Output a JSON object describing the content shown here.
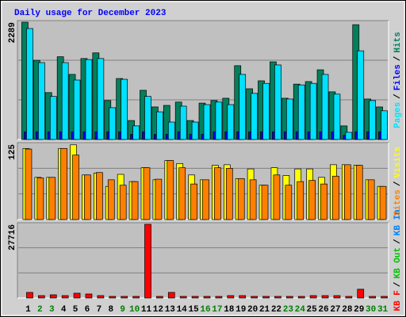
{
  "chart_data": [
    {
      "type": "bar",
      "title": "Daily usage for December 2023",
      "ylim": [
        0,
        2289
      ],
      "yticks": [
        2289
      ],
      "grid": true,
      "legend_separator": "/",
      "series": [
        {
          "name": "Hits",
          "color": "#00805c",
          "values": [
            2289,
            1545,
            915,
            1615,
            1270,
            1580,
            1690,
            760,
            1190,
            370,
            960,
            635,
            665,
            730,
            370,
            710,
            760,
            805,
            1440,
            990,
            1145,
            1515,
            805,
            1080,
            1130,
            1360,
            930,
            265,
            2240,
            790,
            635
          ]
        },
        {
          "name": "Files",
          "color": "#0000ff",
          "values": [
            150,
            150,
            150,
            150,
            150,
            150,
            150,
            150,
            150,
            100,
            150,
            100,
            100,
            150,
            100,
            100,
            150,
            150,
            150,
            150,
            150,
            150,
            150,
            150,
            150,
            150,
            150,
            80,
            150,
            150,
            150
          ]
        },
        {
          "name": "Pages",
          "color": "#00e0ff",
          "values": [
            2165,
            1500,
            840,
            1500,
            1160,
            1560,
            1580,
            620,
            1175,
            265,
            840,
            540,
            340,
            650,
            340,
            680,
            730,
            680,
            1270,
            900,
            1095,
            1455,
            790,
            1065,
            1095,
            1270,
            885,
            140,
            1730,
            760,
            560
          ]
        }
      ]
    },
    {
      "type": "bar",
      "ylim": [
        0,
        125
      ],
      "yticks": [
        125
      ],
      "grid": true,
      "legend_separator": "/",
      "series": [
        {
          "name": "Visits",
          "color": "#ffff00",
          "values": [
            118,
            70,
            70,
            118,
            124,
            74,
            77,
            55,
            75,
            63,
            86,
            66,
            98,
            93,
            74,
            66,
            90,
            91,
            68,
            84,
            57,
            86,
            73,
            84,
            84,
            70,
            91,
            91,
            90,
            66,
            55
          ]
        },
        {
          "name": "Sites",
          "color": "#ff8000",
          "values": [
            117,
            69,
            70,
            118,
            107,
            74,
            78,
            66,
            57,
            63,
            86,
            67,
            98,
            86,
            59,
            66,
            86,
            85,
            68,
            66,
            57,
            74,
            57,
            63,
            65,
            59,
            72,
            91,
            90,
            66,
            55
          ]
        }
      ]
    },
    {
      "type": "bar",
      "ylim": [
        0,
        27716
      ],
      "yticks": [
        27716
      ],
      "grid": true,
      "legend_separator": "/",
      "categories": [
        "1",
        "2",
        "3",
        "4",
        "5",
        "6",
        "7",
        "8",
        "9",
        "10",
        "11",
        "12",
        "13",
        "14",
        "15",
        "16",
        "17",
        "18",
        "19",
        "20",
        "21",
        "22",
        "23",
        "24",
        "25",
        "26",
        "27",
        "28",
        "29",
        "30",
        "31"
      ],
      "category_colors": [
        "#000000",
        "#008000",
        "#008000",
        "#000000",
        "#000000",
        "#000000",
        "#000000",
        "#000000",
        "#008000",
        "#008000",
        "#000000",
        "#000000",
        "#000000",
        "#000000",
        "#000000",
        "#008000",
        "#008000",
        "#000000",
        "#000000",
        "#000000",
        "#000000",
        "#000000",
        "#008000",
        "#008000",
        "#000000",
        "#000000",
        "#000000",
        "#000000",
        "#000000",
        "#008000",
        "#008000"
      ],
      "series": [
        {
          "name": "KB In",
          "color": "#0080ff",
          "values": [
            0,
            0,
            0,
            0,
            0,
            0,
            0,
            0,
            0,
            0,
            0,
            0,
            0,
            0,
            0,
            0,
            0,
            0,
            0,
            0,
            0,
            0,
            0,
            0,
            0,
            0,
            0,
            0,
            0,
            0,
            0
          ]
        },
        {
          "name": "KB Out",
          "color": "#00c000",
          "values": [
            0,
            0,
            0,
            0,
            0,
            0,
            0,
            0,
            0,
            0,
            0,
            0,
            0,
            0,
            0,
            0,
            0,
            0,
            0,
            0,
            0,
            0,
            0,
            0,
            0,
            0,
            0,
            0,
            0,
            0,
            0
          ]
        },
        {
          "name": "KB F",
          "color": "#ff0000",
          "values": [
            2100,
            900,
            1200,
            900,
            1800,
            1500,
            900,
            600,
            600,
            600,
            27716,
            600,
            2100,
            600,
            600,
            600,
            600,
            900,
            900,
            600,
            600,
            600,
            600,
            600,
            900,
            900,
            900,
            600,
            3300,
            600,
            600
          ]
        }
      ]
    }
  ]
}
